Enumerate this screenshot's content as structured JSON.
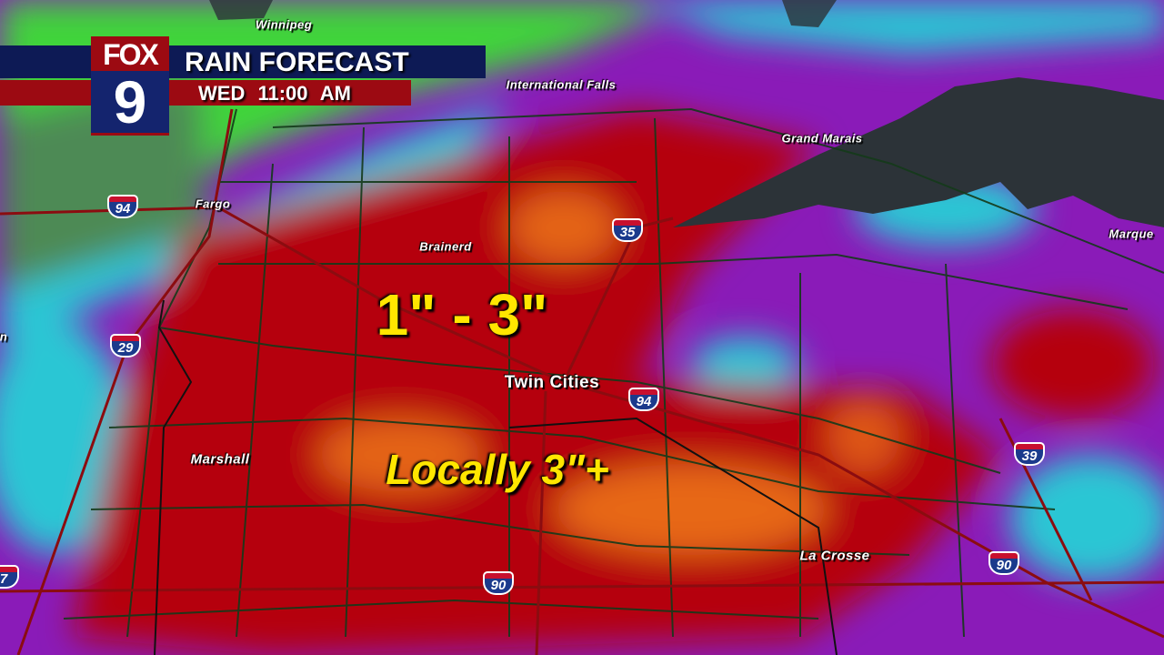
{
  "header": {
    "logo_text": "FOX",
    "logo_number": "9",
    "title": "RAIN FORECAST",
    "subtitle": "WED  11:00 AM"
  },
  "callouts": {
    "range": "1\" - 3\"",
    "local": "Locally 3\"+"
  },
  "cities": {
    "winnipeg": "Winnipeg",
    "international_falls": "International Falls",
    "grand_marais": "Grand Marais",
    "fargo": "Fargo",
    "brainerd": "Brainerd",
    "twin_cities": "Twin Cities",
    "marshall": "Marshall",
    "la_crosse": "La Crosse",
    "marquette_partial": "Marque",
    "edge_partial": "n"
  },
  "highways": {
    "i94_fargo": "94",
    "i29": "29",
    "i35": "35",
    "i94_metro": "94",
    "i39": "39",
    "i90_west": "90",
    "i90_east": "90",
    "edge_partial": "7"
  },
  "colors": {
    "light_rain": "#3fd43a",
    "moderate": "#29c6d4",
    "heavy": "#8a1bb8",
    "very_heavy": "#b5060f",
    "extreme": "#f07a18",
    "lake": "#2c3338",
    "banner_blue": "#0d1a55",
    "banner_red": "#9c0a12",
    "callout_yellow": "#ffe600"
  }
}
